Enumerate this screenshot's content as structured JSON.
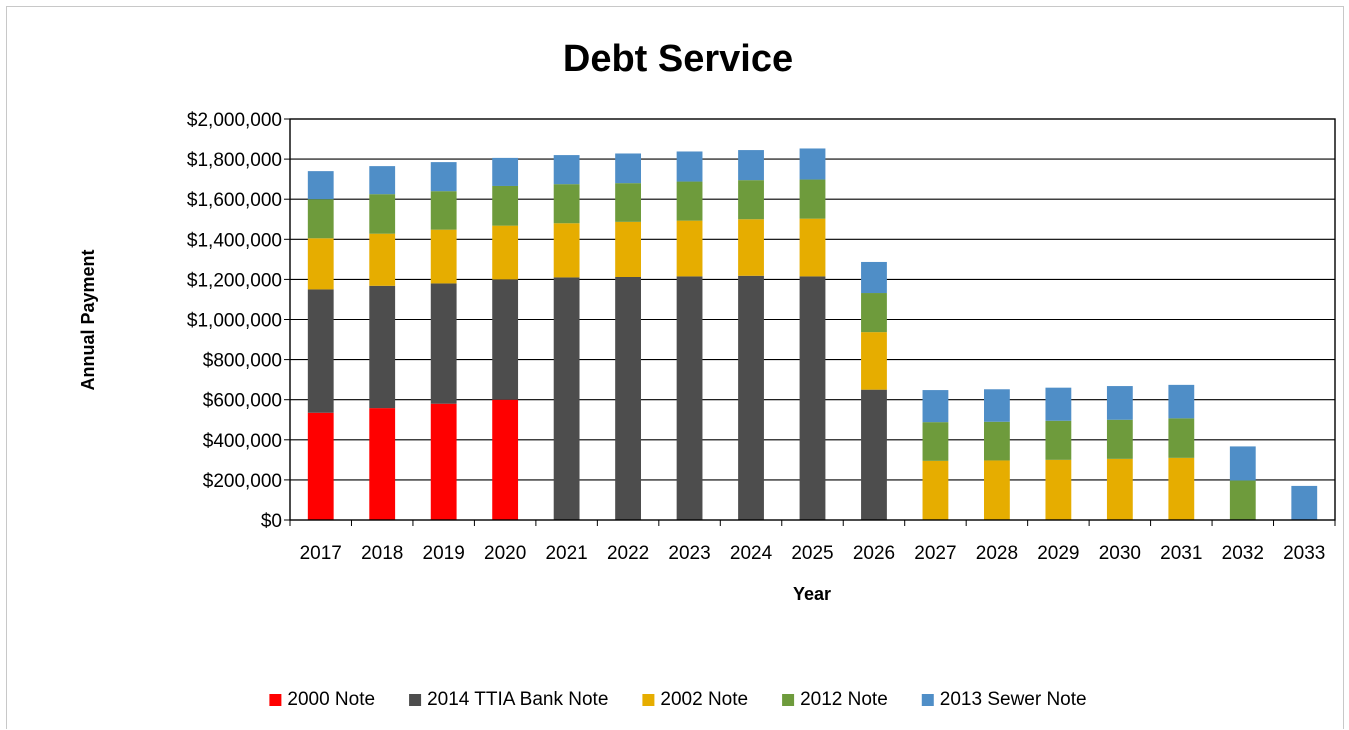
{
  "chart_data": {
    "type": "bar",
    "stacked": true,
    "title": "Debt Service",
    "xlabel": "Year",
    "ylabel": "Annual Payment",
    "ylim": [
      0,
      2000000
    ],
    "y_ticks": [
      0,
      200000,
      400000,
      600000,
      800000,
      1000000,
      1200000,
      1400000,
      1600000,
      1800000,
      2000000
    ],
    "y_tick_labels": [
      "$0",
      "$200,000",
      "$400,000",
      "$600,000",
      "$800,000",
      "$1,000,000",
      "$1,200,000",
      "$1,400,000",
      "$1,600,000",
      "$1,800,000",
      "$2,000,000"
    ],
    "grid": true,
    "legend_position": "bottom",
    "categories": [
      "2017",
      "2018",
      "2019",
      "2020",
      "2021",
      "2022",
      "2023",
      "2024",
      "2025",
      "2026",
      "2027",
      "2028",
      "2029",
      "2030",
      "2031",
      "2032",
      "2033"
    ],
    "series": [
      {
        "name": "2000 Note",
        "color": "#ff0000",
        "values": [
          535000,
          558000,
          580000,
          600000,
          0,
          0,
          0,
          0,
          0,
          0,
          0,
          0,
          0,
          0,
          0,
          0,
          0
        ]
      },
      {
        "name": "2014 TTIA Bank Note",
        "color": "#4d4d4d",
        "values": [
          615000,
          610000,
          600000,
          600000,
          1210000,
          1212000,
          1215000,
          1218000,
          1215000,
          650000,
          0,
          0,
          0,
          0,
          0,
          0,
          0
        ]
      },
      {
        "name": "2002 Note",
        "color": "#e6ad00",
        "values": [
          255000,
          260000,
          268000,
          268000,
          270000,
          275000,
          278000,
          282000,
          288000,
          287000,
          295000,
          297000,
          300000,
          305000,
          310000,
          0,
          0
        ]
      },
      {
        "name": "2012 Note",
        "color": "#6e9b3c",
        "values": [
          195000,
          197000,
          192000,
          198000,
          195000,
          193000,
          195000,
          195000,
          195000,
          195000,
          193000,
          193000,
          195000,
          195000,
          197000,
          197000,
          0
        ]
      },
      {
        "name": "2013 Sewer Note",
        "color": "#4f8ec7",
        "values": [
          140000,
          140000,
          145000,
          140000,
          145000,
          148000,
          150000,
          150000,
          155000,
          155000,
          160000,
          162000,
          165000,
          168000,
          167000,
          170000,
          170000
        ]
      }
    ]
  }
}
